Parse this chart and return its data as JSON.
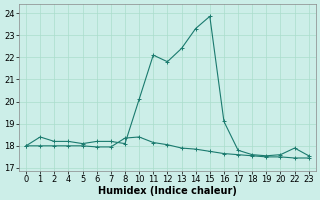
{
  "xlabel": "Humidex (Indice chaleur)",
  "bg_color": "#cceee8",
  "grid_color": "#aaddcc",
  "line_color": "#1a7a6e",
  "xtick_labels": [
    "0",
    "1",
    "2",
    "4",
    "5",
    "6",
    "7",
    "8",
    "10",
    "11",
    "12",
    "13",
    "14",
    "15",
    "16",
    "17",
    "18",
    "19",
    "20",
    "22",
    "23"
  ],
  "yticks": [
    17,
    18,
    19,
    20,
    21,
    22,
    23,
    24
  ],
  "ylim": [
    16.85,
    24.4
  ],
  "line1_y": [
    18.0,
    18.4,
    18.2,
    18.2,
    18.1,
    18.2,
    18.2,
    18.1,
    20.1,
    22.1,
    21.8,
    22.4,
    23.3,
    23.85,
    19.1,
    17.8,
    17.6,
    17.55,
    17.6,
    17.9,
    17.55
  ],
  "line2_y": [
    18.0,
    18.0,
    18.0,
    18.0,
    18.0,
    17.95,
    17.95,
    18.35,
    18.4,
    18.15,
    18.05,
    17.9,
    17.85,
    17.75,
    17.65,
    17.6,
    17.55,
    17.5,
    17.5,
    17.45,
    17.45
  ],
  "markersize": 3,
  "linewidth": 0.8,
  "xlabel_fontsize": 7,
  "tick_fontsize": 6
}
